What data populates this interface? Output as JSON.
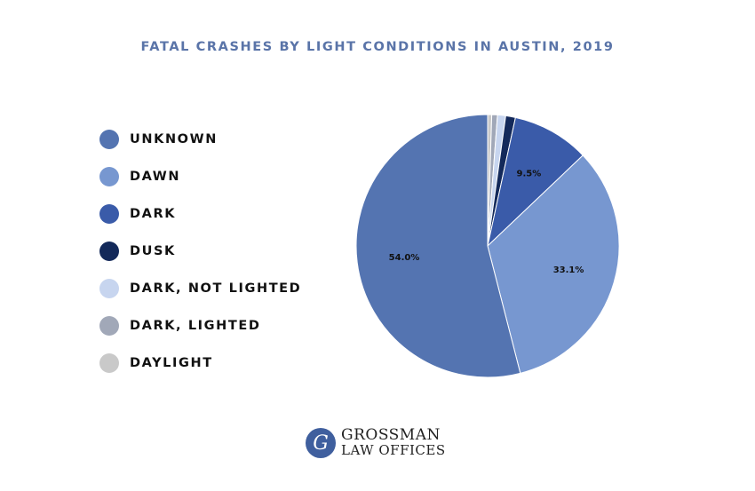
{
  "chart_data": {
    "type": "pie",
    "title": "FATAL CRASHES BY LIGHT CONDITIONS IN AUSTIN, 2019",
    "legend_position": "left",
    "slices": [
      {
        "name": "UNKNOWN",
        "value": 54.0,
        "label": "54.0%",
        "color": "#5474b1"
      },
      {
        "name": "DAWN",
        "value": 33.1,
        "label": "33.1%",
        "color": "#7797d0"
      },
      {
        "name": "DARK",
        "value": 9.5,
        "label": "9.5%",
        "color": "#3a5ba9"
      },
      {
        "name": "DUSK",
        "value": 1.2,
        "label": "",
        "color": "#13295a"
      },
      {
        "name": "DARK, NOT LIGHTED",
        "value": 1.0,
        "label": "",
        "color": "#c7d5ef"
      },
      {
        "name": "DARK, LIGHTED",
        "value": 0.7,
        "label": "",
        "color": "#a1a8b8"
      },
      {
        "name": "DAYLIGHT",
        "value": 0.5,
        "label": "",
        "color": "#c9c9c9"
      }
    ]
  },
  "logo": {
    "initial": "G",
    "line1": "GROSSMAN",
    "line2": "LAW OFFICES"
  }
}
